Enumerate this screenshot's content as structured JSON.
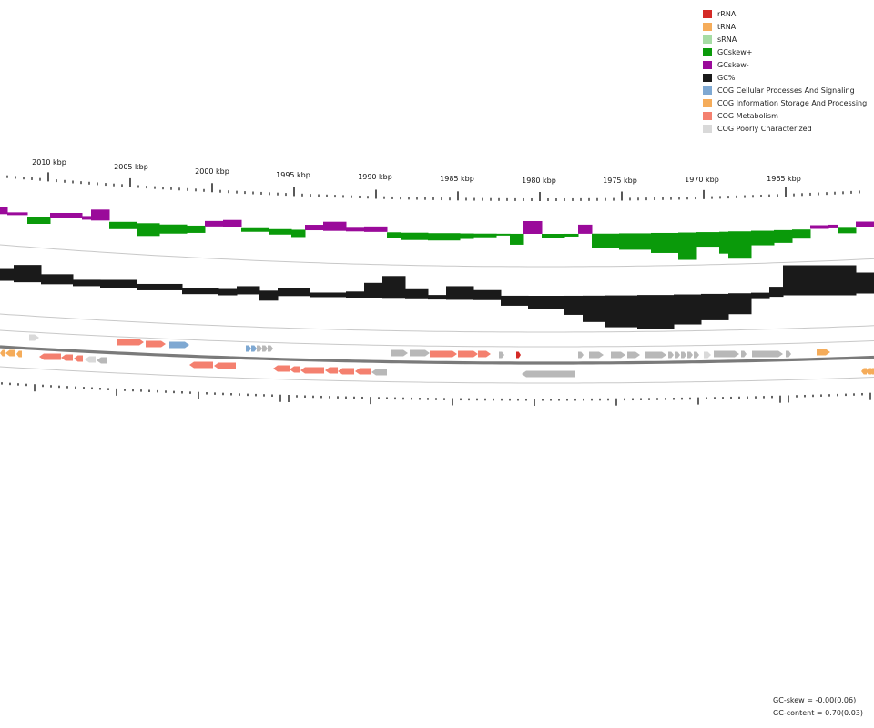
{
  "legend": [
    {
      "label": "rRNA",
      "color": "#d42a26"
    },
    {
      "label": "tRNA",
      "color": "#f5ac5a"
    },
    {
      "label": "sRNA",
      "color": "#a6dca4"
    },
    {
      "label": "GCskew+",
      "color": "#0a9a0a"
    },
    {
      "label": "GCskew-",
      "color": "#9a0a9a"
    },
    {
      "label": "GC%",
      "color": "#1a1a1a"
    },
    {
      "label": "COG Cellular Processes And Signaling",
      "color": "#7ea8d2"
    },
    {
      "label": "COG Information Storage And Processing",
      "color": "#f5ac5a"
    },
    {
      "label": "COG Metabolism",
      "color": "#f4806f"
    },
    {
      "label": "COG Poorly Characterized",
      "color": "#d9d9d9"
    }
  ],
  "ticks": [
    "2010 kbp",
    "2005 kbp",
    "2000 kbp",
    "1995 kbp",
    "1990 kbp",
    "1985 kbp",
    "1980 kbp",
    "1975 kbp",
    "1970 kbp",
    "1965 kbp"
  ],
  "stats": {
    "gc_skew": "GC-skew = -0.00(0.06)",
    "gc_content": "GC-content = 0.70(0.03)"
  },
  "colors": {
    "skew_pos": "#0a9a0a",
    "skew_neg": "#9a0a9a",
    "gc": "#1a1a1a",
    "metabolism": "#f4806f",
    "info": "#f5ac5a",
    "cellular": "#7ea8d2",
    "poor": "#d9d9d9",
    "rrna": "#d42a26",
    "grey_cds": "#b8b8b8",
    "backbone": "#7a7a7a",
    "ring": "#c8c8c8"
  }
}
